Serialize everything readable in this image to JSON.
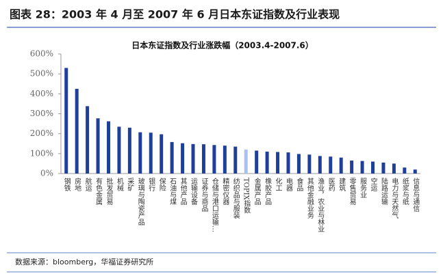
{
  "header": {
    "title": "图表 28：2003 年 4 月至 2007 年 6 月日本东证指数及行业表现"
  },
  "chart_data": {
    "type": "bar",
    "title": "日本东证指数及行业涨跌幅（2003.4-2007.6）",
    "categories": [
      "钢铁",
      "房地",
      "航运",
      "有色金属",
      "批发贸易",
      "机械",
      "采矿",
      "玻璃与陶瓷产品",
      "银行",
      "保险",
      "石油与煤",
      "其他产品",
      "运输设备",
      "证券与商品",
      "仓储与港口运输…",
      "精密仪器",
      "纺织品与服装",
      "TOPIX指数",
      "金属产品",
      "橡胶产品",
      "化工",
      "电器",
      "食品",
      "其他金融业务",
      "渔业，农业与林业",
      "医药",
      "建筑",
      "零售贸易",
      "服务业",
      "空运",
      "陆路运输",
      "电力与天然气",
      "纸浆与纸",
      "信息与通信"
    ],
    "values": [
      530,
      425,
      338,
      277,
      262,
      235,
      230,
      207,
      205,
      197,
      158,
      152,
      148,
      147,
      143,
      140,
      135,
      120,
      115,
      110,
      108,
      106,
      98,
      95,
      88,
      85,
      80,
      65,
      63,
      60,
      55,
      50,
      30,
      20
    ],
    "colors": [
      "#1f3f99",
      "#1f3f99",
      "#1f3f99",
      "#1f3f99",
      "#1f3f99",
      "#1f3f99",
      "#1f3f99",
      "#1f3f99",
      "#1f3f99",
      "#1f3f99",
      "#1f3f99",
      "#1f3f99",
      "#1f3f99",
      "#1f3f99",
      "#1f3f99",
      "#1f3f99",
      "#1f3f99",
      "#a9c1f0",
      "#1f3f99",
      "#1f3f99",
      "#1f3f99",
      "#1f3f99",
      "#1f3f99",
      "#1f3f99",
      "#1f3f99",
      "#1f3f99",
      "#1f3f99",
      "#1f3f99",
      "#1f3f99",
      "#1f3f99",
      "#1f3f99",
      "#1f3f99",
      "#1f3f99",
      "#1f3f99"
    ],
    "ylim": [
      0,
      600
    ],
    "yticks": [
      {
        "value": 0,
        "label": "0%"
      },
      {
        "value": 100,
        "label": "100%"
      },
      {
        "value": 200,
        "label": "200%"
      },
      {
        "value": 300,
        "label": "300%"
      },
      {
        "value": 400,
        "label": "400%"
      },
      {
        "value": 500,
        "label": "500%"
      },
      {
        "value": 600,
        "label": "600%"
      }
    ]
  },
  "footer": {
    "source": "数据来源：bloomberg，华福证券研究所"
  }
}
